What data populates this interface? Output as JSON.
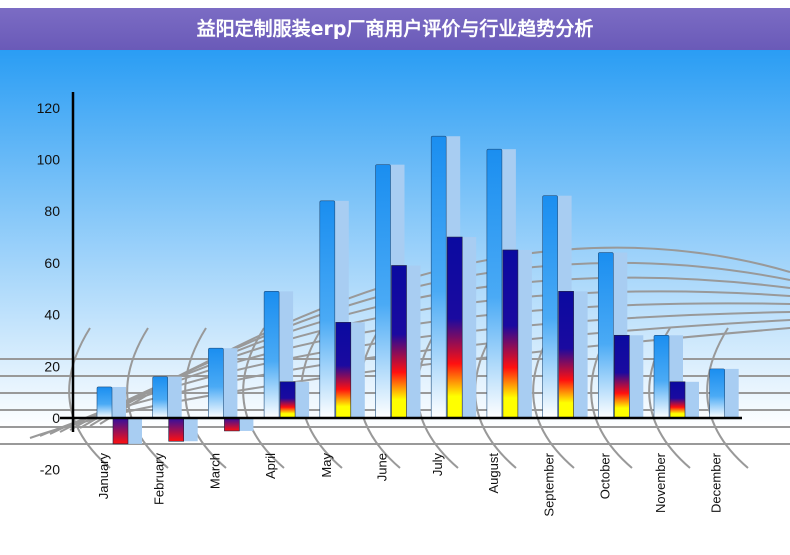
{
  "title": "益阳定制服装erp厂商用户评价与行业趋势分析",
  "chart_data": {
    "type": "bar",
    "title": "",
    "xlabel": "",
    "ylabel": "",
    "ylim": [
      -20,
      120
    ],
    "yticks": [
      -20,
      0,
      20,
      40,
      60,
      80,
      100,
      120
    ],
    "grid": false,
    "legend": "none",
    "categories": [
      "January",
      "February",
      "March",
      "April",
      "May",
      "June",
      "July",
      "August",
      "September",
      "October",
      "November",
      "December"
    ],
    "series": [
      {
        "values": [
          12,
          16,
          27,
          49,
          84,
          98,
          109,
          104,
          86,
          64,
          32,
          19
        ],
        "color": "#1e90f0"
      },
      {
        "values": [
          -10,
          -9,
          -5,
          14,
          37,
          59,
          70,
          65,
          49,
          32,
          14,
          0
        ],
        "color": "#0a0aa0"
      }
    ],
    "colors": {
      "background_top": "#2a9df4",
      "background_bottom": "#ffffff",
      "title_bar": "#7060c0"
    }
  }
}
